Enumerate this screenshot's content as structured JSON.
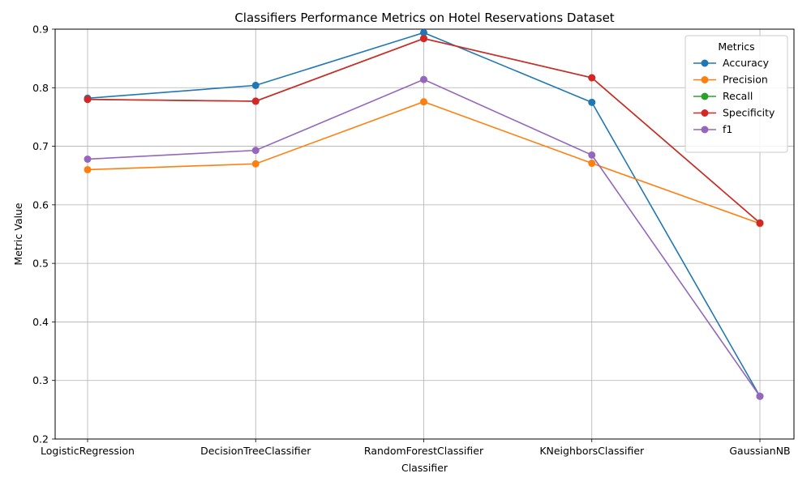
{
  "chart_data": {
    "type": "line",
    "title": "Classifiers Performance Metrics on Hotel Reservations Dataset",
    "xlabel": "Classifier",
    "ylabel": "Metric Value",
    "categories": [
      "LogisticRegression",
      "DecisionTreeClassifier",
      "RandomForestClassifier",
      "KNeighborsClassifier",
      "GaussianNB"
    ],
    "ylim": [
      0.2,
      0.9
    ],
    "yticks": [
      0.2,
      0.3,
      0.4,
      0.5,
      0.6,
      0.7,
      0.8,
      0.9
    ],
    "ytick_labels": [
      "0.2",
      "0.3",
      "0.4",
      "0.5",
      "0.6",
      "0.7",
      "0.8",
      "0.9"
    ],
    "grid": true,
    "legend": {
      "title": "Metrics",
      "placement": "top-right"
    },
    "series": [
      {
        "name": "Accuracy",
        "color": "#1f77b4",
        "values": [
          0.782,
          0.804,
          0.894,
          0.775,
          0.273
        ]
      },
      {
        "name": "Precision",
        "color": "#ff7f0e",
        "values": [
          0.66,
          0.67,
          0.776,
          0.671,
          0.568
        ]
      },
      {
        "name": "Recall",
        "color": "#2ca02c",
        "values": [
          0.78,
          0.777,
          0.884,
          0.817,
          0.569
        ]
      },
      {
        "name": "Specificity",
        "color": "#d62728",
        "values": [
          0.78,
          0.777,
          0.884,
          0.817,
          0.569
        ]
      },
      {
        "name": "f1",
        "color": "#9467bd",
        "values": [
          0.678,
          0.693,
          0.814,
          0.685,
          0.273
        ]
      }
    ]
  }
}
